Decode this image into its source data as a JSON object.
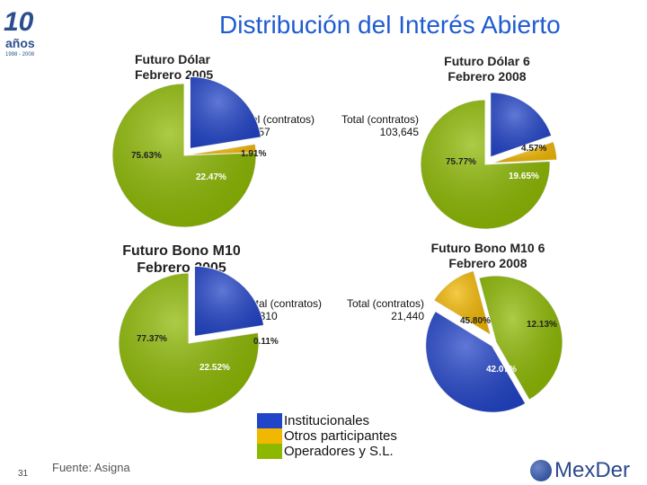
{
  "header": {
    "title": "Distribución del Interés Abierto",
    "logo_number": "10",
    "logo_word": "años",
    "logo_years": "1998 - 2008"
  },
  "footer": {
    "page_number": "31",
    "source": "Fuente: Asigna",
    "logo_text": "MexDer"
  },
  "colors": {
    "institucionales": "#2244c8",
    "otros": "#f2b700",
    "operadores": "#8cb800"
  },
  "chart_data": [
    {
      "type": "pie",
      "title": "Futuro Dólar Febrero 2005",
      "total_label": "Total (contratos)",
      "total": "92,357",
      "slices": [
        {
          "name": "Institucionales",
          "value": 22.47,
          "label": "22.47%"
        },
        {
          "name": "Otros participantes",
          "value": 1.91,
          "label": "1.91%"
        },
        {
          "name": "Operadores y S.L.",
          "value": 75.63,
          "label": "75.63%"
        }
      ]
    },
    {
      "type": "pie",
      "title": "Futuro Dólar 6 Febrero 2008",
      "total_label": "Total (contratos)",
      "total": "103,645",
      "slices": [
        {
          "name": "Institucionales",
          "value": 19.65,
          "label": "19.65%"
        },
        {
          "name": "Otros participantes",
          "value": 4.57,
          "label": "4.57%"
        },
        {
          "name": "Operadores y S.L.",
          "value": 75.77,
          "label": "75.77%"
        }
      ]
    },
    {
      "type": "pie",
      "title": "Futuro Bono M10 Febrero 2005",
      "total_label": "Total (contratos)",
      "total": "23,310",
      "slices": [
        {
          "name": "Institucionales",
          "value": 22.52,
          "label": "22.52%"
        },
        {
          "name": "Otros participantes",
          "value": 0.11,
          "label": "0.11%"
        },
        {
          "name": "Operadores y S.L.",
          "value": 77.37,
          "label": "77.37%"
        }
      ]
    },
    {
      "type": "pie",
      "title": "Futuro Bono M10 6 Febrero 2008",
      "total_label": "Total (contratos)",
      "total": "21,440",
      "slices": [
        {
          "name": "Institucionales",
          "value": 42.07,
          "label": "42.07%"
        },
        {
          "name": "Otros participantes",
          "value": 12.13,
          "label": "12.13%"
        },
        {
          "name": "Operadores y S.L.",
          "value": 45.8,
          "label": "45.80%"
        }
      ]
    }
  ],
  "legend": [
    {
      "label": "Institucionales",
      "color": "#2244c8"
    },
    {
      "label": "Otros participantes",
      "color": "#f2b700"
    },
    {
      "label": "Operadores y S.L.",
      "color": "#8cb800"
    }
  ]
}
